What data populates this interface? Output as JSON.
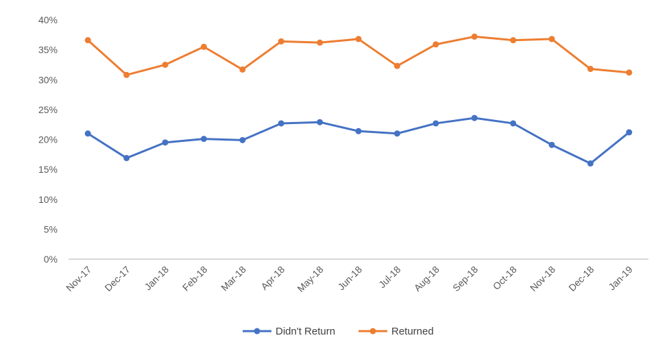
{
  "chart_data": {
    "type": "line",
    "title": "",
    "xlabel": "",
    "ylabel": "",
    "categories": [
      "Nov-17",
      "Dec-17",
      "Jan-18",
      "Feb-18",
      "Mar-18",
      "Apr-18",
      "May-18",
      "Jun-18",
      "Jul-18",
      "Aug-18",
      "Sep-18",
      "Oct-18",
      "Nov-18",
      "Dec-18",
      "Jan-19"
    ],
    "ylim": [
      0,
      40
    ],
    "yticks": [
      "0%",
      "5%",
      "10%",
      "15%",
      "20%",
      "25%",
      "30%",
      "35%",
      "40%"
    ],
    "grid": false,
    "legend_position": "bottom",
    "series": [
      {
        "name": "Didn't Return",
        "color": "#4472C4",
        "values": [
          21.0,
          16.9,
          19.5,
          20.1,
          19.9,
          22.7,
          22.9,
          21.4,
          21.0,
          22.7,
          23.6,
          22.7,
          19.1,
          16.0,
          21.2
        ]
      },
      {
        "name": "Returned",
        "color": "#ED7D31",
        "values": [
          36.6,
          30.8,
          32.5,
          35.5,
          31.7,
          36.4,
          36.2,
          36.8,
          32.3,
          35.9,
          37.2,
          36.6,
          36.8,
          31.8,
          31.2
        ]
      }
    ]
  }
}
